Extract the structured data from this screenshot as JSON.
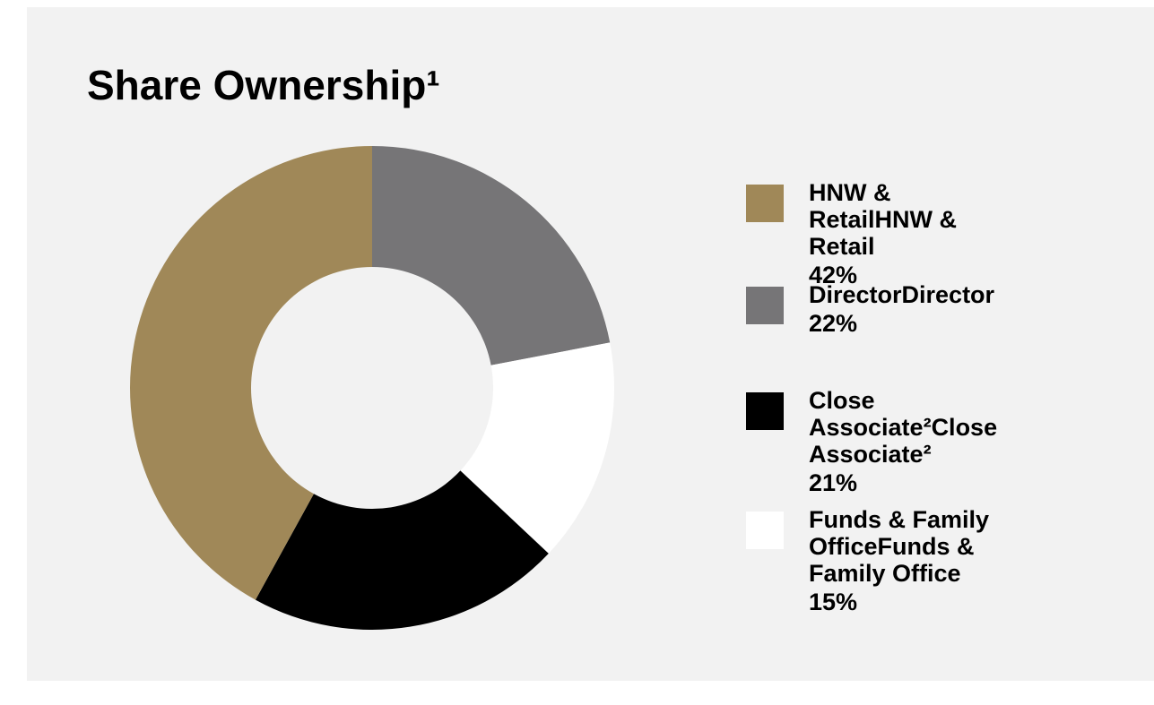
{
  "chart_data": {
    "type": "donut",
    "title": "Share Ownership¹",
    "categories": [
      "Director",
      "Funds & Family Office",
      "Close Associate²",
      "HNW & Retail"
    ],
    "values": [
      22,
      15,
      21,
      42
    ],
    "value_labels": [
      "22%",
      "15%",
      "21%",
      "42%"
    ],
    "colors": [
      "#767577",
      "#ffffff",
      "#000000",
      "#a08858"
    ],
    "legend": "right"
  }
}
